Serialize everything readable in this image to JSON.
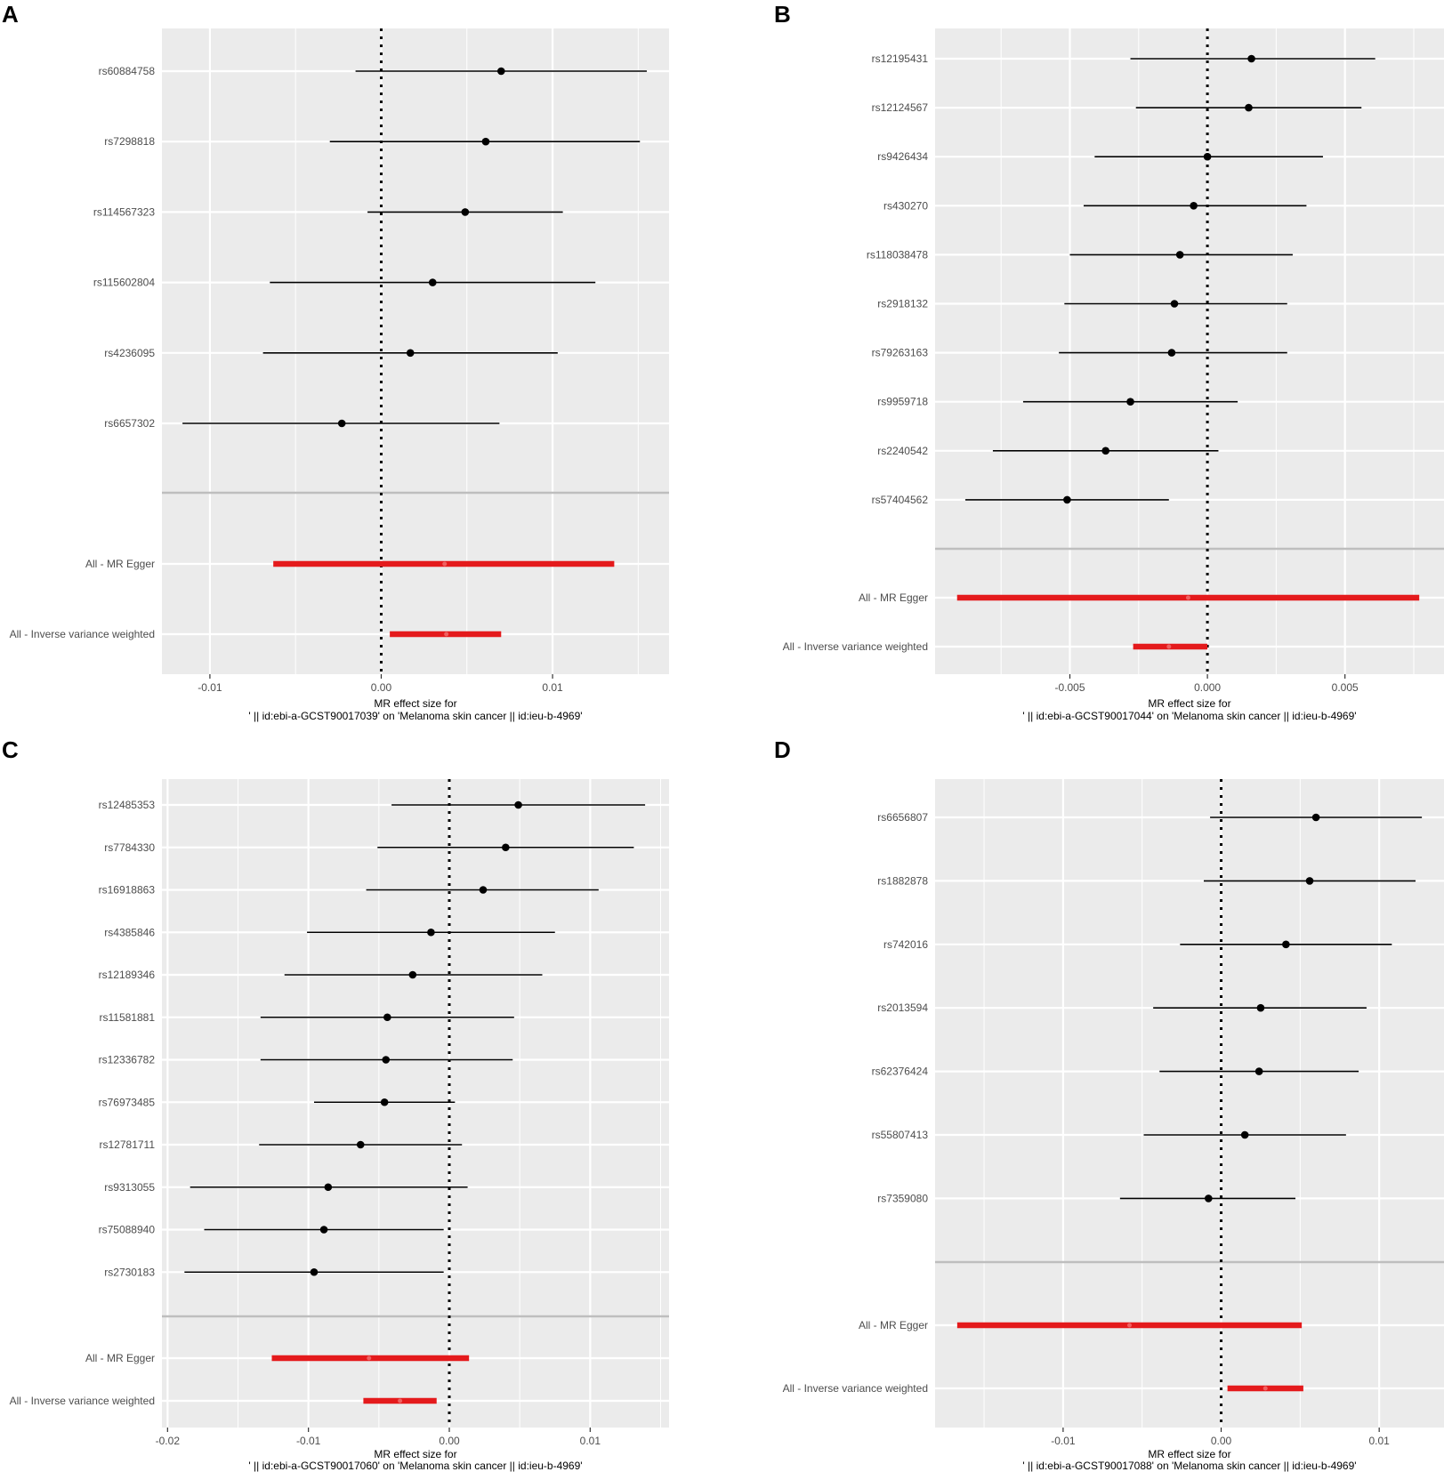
{
  "colors": {
    "panel_bg": "#ebebeb",
    "grid": "#ffffff",
    "separator": "#bebebe",
    "snp": "#000000",
    "summary": "#e41a1c"
  },
  "chart_data": [
    {
      "panel": "A",
      "type": "forest",
      "xlabel_line1": "MR effect size for",
      "xlabel_line2": "' || id:ebi-a-GCST90017039' on 'Melanoma skin cancer || id:ieu-b-4969'",
      "xlim": [
        -0.0128,
        0.0168
      ],
      "ticks": [
        -0.01,
        0.0,
        0.01
      ],
      "tick_labels": [
        "-0.01",
        "0.00",
        "0.01"
      ],
      "snps": [
        {
          "label": "rs60884758",
          "b": 0.007,
          "lo": -0.0015,
          "hi": 0.0155
        },
        {
          "label": "rs7298818",
          "b": 0.0061,
          "lo": -0.003,
          "hi": 0.0151
        },
        {
          "label": "rs114567323",
          "b": 0.0049,
          "lo": -0.0008,
          "hi": 0.0106
        },
        {
          "label": "rs115602804",
          "b": 0.003,
          "lo": -0.0065,
          "hi": 0.0125
        },
        {
          "label": "rs4236095",
          "b": 0.0017,
          "lo": -0.0069,
          "hi": 0.0103
        },
        {
          "label": "rs6657302",
          "b": -0.0023,
          "lo": -0.0116,
          "hi": 0.0069
        }
      ],
      "summary": [
        {
          "label": "All - MR Egger",
          "b": 0.0037,
          "lo": -0.0063,
          "hi": 0.0136
        },
        {
          "label": "All - Inverse variance weighted",
          "b": 0.0038,
          "lo": 0.0005,
          "hi": 0.007
        }
      ]
    },
    {
      "panel": "B",
      "type": "forest",
      "xlabel_line1": "MR effect size for",
      "xlabel_line2": "' || id:ebi-a-GCST90017044' on 'Melanoma skin cancer || id:ieu-b-4969'",
      "xlim": [
        -0.0099,
        0.0086
      ],
      "ticks": [
        -0.005,
        0.0,
        0.005
      ],
      "tick_labels": [
        "-0.005",
        "0.000",
        "0.005"
      ],
      "snps": [
        {
          "label": "rs12195431",
          "b": 0.0016,
          "lo": -0.0028,
          "hi": 0.0061
        },
        {
          "label": "rs12124567",
          "b": 0.0015,
          "lo": -0.0026,
          "hi": 0.0056
        },
        {
          "label": "rs9426434",
          "b": 0.0,
          "lo": -0.0041,
          "hi": 0.0042
        },
        {
          "label": "rs430270",
          "b": -0.0005,
          "lo": -0.0045,
          "hi": 0.0036
        },
        {
          "label": "rs118038478",
          "b": -0.001,
          "lo": -0.005,
          "hi": 0.0031
        },
        {
          "label": "rs2918132",
          "b": -0.0012,
          "lo": -0.0052,
          "hi": 0.0029
        },
        {
          "label": "rs79263163",
          "b": -0.0013,
          "lo": -0.0054,
          "hi": 0.0029
        },
        {
          "label": "rs9959718",
          "b": -0.0028,
          "lo": -0.0067,
          "hi": 0.0011
        },
        {
          "label": "rs2240542",
          "b": -0.0037,
          "lo": -0.0078,
          "hi": 0.0004
        },
        {
          "label": "rs57404562",
          "b": -0.0051,
          "lo": -0.0088,
          "hi": -0.0014
        }
      ],
      "summary": [
        {
          "label": "All - MR Egger",
          "b": -0.0007,
          "lo": -0.0091,
          "hi": 0.0077
        },
        {
          "label": "All - Inverse variance weighted",
          "b": -0.0014,
          "lo": -0.0027,
          "hi": 0.0
        }
      ]
    },
    {
      "panel": "C",
      "type": "forest",
      "xlabel_line1": "MR effect size for",
      "xlabel_line2": "' || id:ebi-a-GCST90017060' on 'Melanoma skin cancer || id:ieu-b-4969'",
      "xlim": [
        -0.0204,
        0.0156
      ],
      "ticks": [
        -0.02,
        -0.01,
        0.0,
        0.01
      ],
      "tick_labels": [
        "-0.02",
        "-0.01",
        "0.00",
        "0.01"
      ],
      "snps": [
        {
          "label": "rs12485353",
          "b": 0.0049,
          "lo": -0.0041,
          "hi": 0.0139
        },
        {
          "label": "rs7784330",
          "b": 0.004,
          "lo": -0.0051,
          "hi": 0.0131
        },
        {
          "label": "rs16918863",
          "b": 0.0024,
          "lo": -0.0059,
          "hi": 0.0106
        },
        {
          "label": "rs4385846",
          "b": -0.0013,
          "lo": -0.0101,
          "hi": 0.0075
        },
        {
          "label": "rs12189346",
          "b": -0.0026,
          "lo": -0.0117,
          "hi": 0.0066
        },
        {
          "label": "rs11581881",
          "b": -0.0044,
          "lo": -0.0134,
          "hi": 0.0046
        },
        {
          "label": "rs12336782",
          "b": -0.0045,
          "lo": -0.0134,
          "hi": 0.0045
        },
        {
          "label": "rs76973485",
          "b": -0.0046,
          "lo": -0.0096,
          "hi": 0.0004
        },
        {
          "label": "rs12781711",
          "b": -0.0063,
          "lo": -0.0135,
          "hi": 0.0009
        },
        {
          "label": "rs9313055",
          "b": -0.0086,
          "lo": -0.0184,
          "hi": 0.0013
        },
        {
          "label": "rs75088940",
          "b": -0.0089,
          "lo": -0.0174,
          "hi": -0.0004
        },
        {
          "label": "rs2730183",
          "b": -0.0096,
          "lo": -0.0188,
          "hi": -0.0004
        }
      ],
      "summary": [
        {
          "label": "All - MR Egger",
          "b": -0.0057,
          "lo": -0.0126,
          "hi": 0.0014
        },
        {
          "label": "All - Inverse variance weighted",
          "b": -0.0035,
          "lo": -0.0061,
          "hi": -0.0009
        }
      ]
    },
    {
      "panel": "D",
      "type": "forest",
      "xlabel_line1": "MR effect size for",
      "xlabel_line2": "' || id:ebi-a-GCST90017088' on 'Melanoma skin cancer || id:ieu-b-4969'",
      "xlim": [
        -0.0181,
        0.0141
      ],
      "ticks": [
        -0.01,
        0.0,
        0.01
      ],
      "tick_labels": [
        "-0.01",
        "0.00",
        "0.01"
      ],
      "snps": [
        {
          "label": "rs6656807",
          "b": 0.006,
          "lo": -0.0007,
          "hi": 0.0127
        },
        {
          "label": "rs1882878",
          "b": 0.0056,
          "lo": -0.0011,
          "hi": 0.0123
        },
        {
          "label": "rs742016",
          "b": 0.0041,
          "lo": -0.0026,
          "hi": 0.0108
        },
        {
          "label": "rs2013594",
          "b": 0.0025,
          "lo": -0.0043,
          "hi": 0.0092
        },
        {
          "label": "rs62376424",
          "b": 0.0024,
          "lo": -0.0039,
          "hi": 0.0087
        },
        {
          "label": "rs55807413",
          "b": 0.0015,
          "lo": -0.0049,
          "hi": 0.0079
        },
        {
          "label": "rs7359080",
          "b": -0.0008,
          "lo": -0.0064,
          "hi": 0.0047
        }
      ],
      "summary": [
        {
          "label": "All - MR Egger",
          "b": -0.0058,
          "lo": -0.0167,
          "hi": 0.0051
        },
        {
          "label": "All - Inverse variance weighted",
          "b": 0.0028,
          "lo": 0.0004,
          "hi": 0.0052
        }
      ]
    }
  ]
}
